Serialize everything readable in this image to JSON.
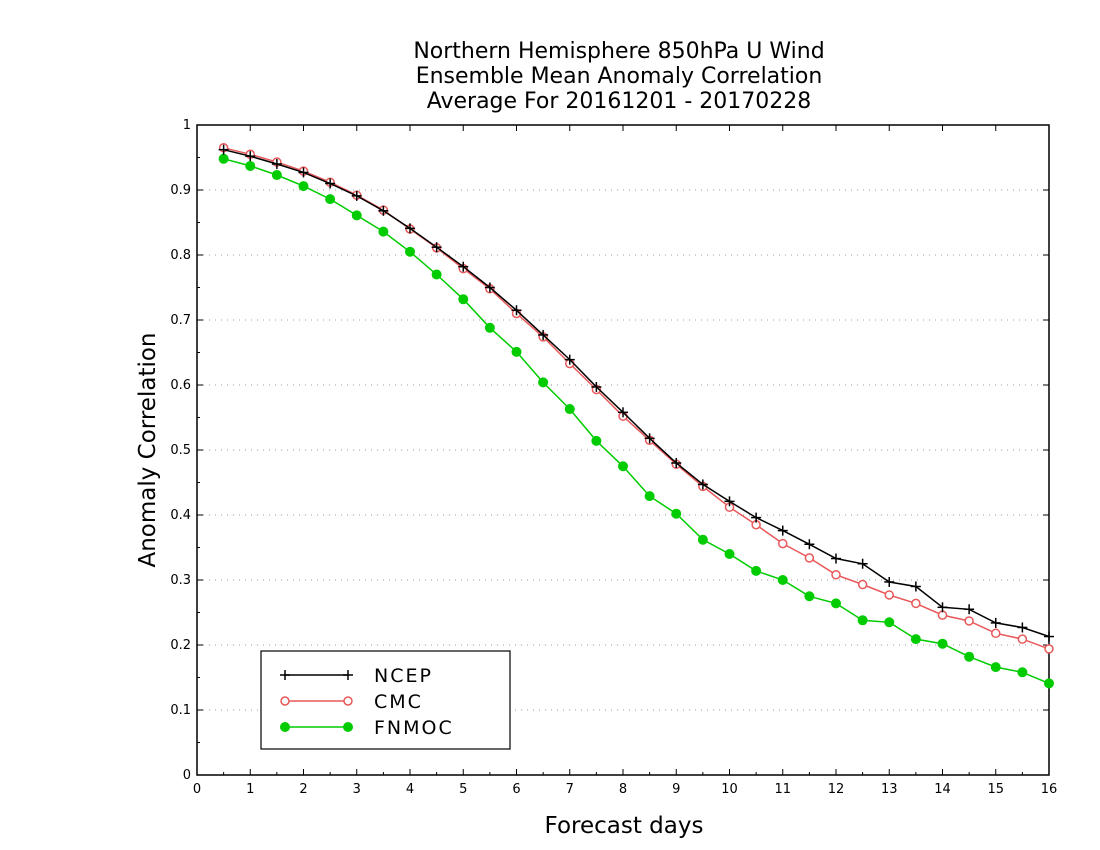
{
  "chart_data": {
    "type": "line",
    "title": [
      "Northern Hemisphere 850hPa U Wind",
      "Ensemble Mean Anomaly Correlation",
      "Average For 20161201 - 20170228"
    ],
    "xlabel": "Forecast days",
    "ylabel": "Anomaly Correlation",
    "xlim": [
      0,
      16
    ],
    "ylim": [
      0,
      1
    ],
    "x_ticks": [
      0,
      1,
      2,
      3,
      4,
      5,
      6,
      7,
      8,
      9,
      10,
      11,
      12,
      13,
      14,
      15,
      16
    ],
    "y_ticks": [
      0,
      0.1,
      0.2,
      0.3,
      0.4,
      0.5,
      0.6,
      0.7,
      0.8,
      0.9,
      1
    ],
    "y_tick_labels": [
      "0",
      "0.1",
      "0.2",
      "0.3",
      "0.4",
      "0.5",
      "0.6",
      "0.7",
      "0.8",
      "0.9",
      "1"
    ],
    "grid": "horizontal dotted",
    "legend_position": "bottom-left",
    "x": [
      0.5,
      1,
      1.5,
      2,
      2.5,
      3,
      3.5,
      4,
      4.5,
      5,
      5.5,
      6,
      6.5,
      7,
      7.5,
      8,
      8.5,
      9,
      9.5,
      10,
      10.5,
      11,
      11.5,
      12,
      12.5,
      13,
      13.5,
      14,
      14.5,
      15,
      15.5,
      16
    ],
    "series": [
      {
        "name": "NCEP",
        "color": "#000000",
        "marker": "plus",
        "values": [
          0.962,
          0.952,
          0.94,
          0.927,
          0.91,
          0.891,
          0.868,
          0.841,
          0.812,
          0.782,
          0.75,
          0.715,
          0.677,
          0.639,
          0.597,
          0.558,
          0.518,
          0.48,
          0.447,
          0.421,
          0.396,
          0.376,
          0.355,
          0.333,
          0.325,
          0.297,
          0.29,
          0.258,
          0.255,
          0.234,
          0.227,
          0.213
        ]
      },
      {
        "name": "CMC",
        "color": "#e8585a",
        "marker": "open-circle",
        "values": [
          0.965,
          0.955,
          0.943,
          0.929,
          0.912,
          0.892,
          0.869,
          0.84,
          0.811,
          0.779,
          0.748,
          0.71,
          0.674,
          0.633,
          0.593,
          0.552,
          0.515,
          0.478,
          0.444,
          0.412,
          0.385,
          0.356,
          0.334,
          0.308,
          0.293,
          0.277,
          0.264,
          0.246,
          0.237,
          0.218,
          0.209,
          0.194
        ]
      },
      {
        "name": "FNMOC",
        "color": "#00cc00",
        "marker": "filled-circle",
        "values": [
          0.948,
          0.937,
          0.923,
          0.906,
          0.886,
          0.861,
          0.836,
          0.805,
          0.77,
          0.732,
          0.688,
          0.651,
          0.604,
          0.563,
          0.514,
          0.475,
          0.429,
          0.402,
          0.362,
          0.34,
          0.314,
          0.3,
          0.275,
          0.264,
          0.238,
          0.235,
          0.209,
          0.202,
          0.182,
          0.166,
          0.158,
          0.141
        ]
      }
    ]
  }
}
